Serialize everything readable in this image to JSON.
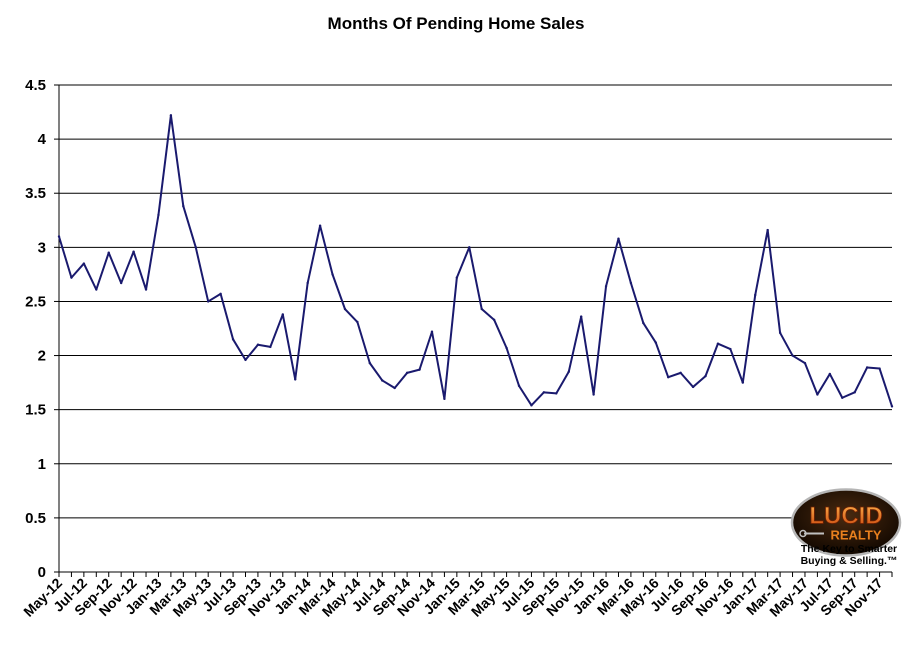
{
  "chart_data": {
    "type": "line",
    "title": "Months Of Pending Home Sales",
    "xlabel": "",
    "ylabel": "",
    "ylim": [
      0,
      4.5
    ],
    "yticks": [
      "0",
      "0.5",
      "1",
      "1.5",
      "2",
      "2.5",
      "3",
      "3.5",
      "4",
      "4.5"
    ],
    "grid": true,
    "line_color": "#1a1a6e",
    "x_tick_labels": [
      "May-12",
      "Jul-12",
      "Sep-12",
      "Nov-12",
      "Jan-13",
      "Mar-13",
      "May-13",
      "Jul-13",
      "Sep-13",
      "Nov-13",
      "Jan-14",
      "Mar-14",
      "May-14",
      "Jul-14",
      "Sep-14",
      "Nov-14",
      "Jan-15",
      "Mar-15",
      "May-15",
      "Jul-15",
      "Sep-15",
      "Nov-15",
      "Jan-16",
      "Mar-16",
      "May-16",
      "Jul-16",
      "Sep-16",
      "Nov-16",
      "Jan-17",
      "Mar-17",
      "May-17",
      "Jul-17",
      "Sep-17",
      "Nov-17"
    ],
    "x": [
      "May-12",
      "Jun-12",
      "Jul-12",
      "Aug-12",
      "Sep-12",
      "Oct-12",
      "Nov-12",
      "Dec-12",
      "Jan-13",
      "Feb-13",
      "Mar-13",
      "Apr-13",
      "May-13",
      "Jun-13",
      "Jul-13",
      "Aug-13",
      "Sep-13",
      "Oct-13",
      "Nov-13",
      "Dec-13",
      "Jan-14",
      "Feb-14",
      "Mar-14",
      "Apr-14",
      "May-14",
      "Jun-14",
      "Jul-14",
      "Aug-14",
      "Sep-14",
      "Oct-14",
      "Nov-14",
      "Dec-14",
      "Jan-15",
      "Feb-15",
      "Mar-15",
      "Apr-15",
      "May-15",
      "Jun-15",
      "Jul-15",
      "Aug-15",
      "Sep-15",
      "Oct-15",
      "Nov-15",
      "Dec-15",
      "Jan-16",
      "Feb-16",
      "Mar-16",
      "Apr-16",
      "May-16",
      "Jun-16",
      "Jul-16",
      "Aug-16",
      "Sep-16",
      "Oct-16",
      "Nov-16",
      "Dec-16",
      "Jan-17",
      "Feb-17",
      "Mar-17",
      "Apr-17",
      "May-17",
      "Jun-17",
      "Jul-17",
      "Aug-17",
      "Sep-17",
      "Oct-17",
      "Nov-17",
      "Dec-17"
    ],
    "values": [
      3.1,
      2.72,
      2.85,
      2.61,
      2.95,
      2.67,
      2.96,
      2.61,
      3.3,
      4.22,
      3.38,
      3.0,
      2.5,
      2.57,
      2.15,
      1.96,
      2.1,
      2.08,
      2.38,
      1.78,
      2.67,
      3.2,
      2.75,
      2.43,
      2.31,
      1.93,
      1.77,
      1.7,
      1.84,
      1.87,
      2.22,
      1.6,
      2.72,
      3.0,
      2.43,
      2.33,
      2.07,
      1.72,
      1.54,
      1.66,
      1.65,
      1.85,
      2.36,
      1.64,
      2.64,
      3.08,
      2.67,
      2.3,
      2.12,
      1.8,
      1.84,
      1.71,
      1.81,
      2.11,
      2.06,
      1.75,
      2.56,
      3.16,
      2.21,
      2.0,
      1.93,
      1.64,
      1.83,
      1.61,
      1.66,
      1.89,
      1.88,
      1.53
    ]
  },
  "logo": {
    "name": "Lucid Realty",
    "tagline_line1": "The Key to Smarter",
    "tagline_line2": "Buying & Selling.™"
  }
}
